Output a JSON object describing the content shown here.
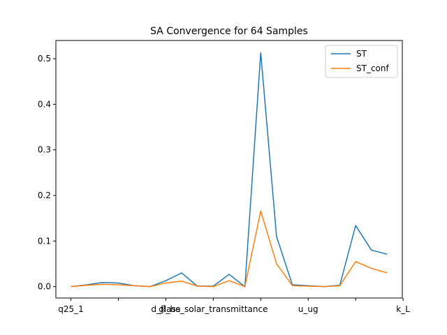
{
  "chart_data": {
    "type": "line",
    "title": "SA Convergence for 64 Samples",
    "xlabel": "",
    "ylabel": "",
    "xtick_labels": [
      "q25_1",
      "",
      "d_fl_be",
      "glass_solar_transmittance",
      "",
      "u_ug",
      "",
      "k_L"
    ],
    "x": [
      0,
      1,
      2,
      3,
      4,
      5,
      6,
      7,
      8,
      9,
      10,
      11,
      12,
      13,
      14,
      15,
      16,
      17,
      18,
      19,
      20
    ],
    "ylim": [
      -0.025,
      0.54
    ],
    "yticks": [
      0.0,
      0.1,
      0.2,
      0.3,
      0.4,
      0.5
    ],
    "ytick_labels": [
      "0.0",
      "0.1",
      "0.2",
      "0.3",
      "0.4",
      "0.5"
    ],
    "legend_position": "top-right",
    "grid": false,
    "series": [
      {
        "name": "ST",
        "color": "#1f77b4",
        "values": [
          0.0,
          0.004,
          0.009,
          0.008,
          0.002,
          0.0,
          0.013,
          0.03,
          0.001,
          0.001,
          0.027,
          0.0,
          0.513,
          0.11,
          0.004,
          0.002,
          0.0,
          0.003,
          0.134,
          0.08,
          0.071
        ]
      },
      {
        "name": "ST_conf",
        "color": "#ff7f0e",
        "values": [
          0.0,
          0.003,
          0.005,
          0.004,
          0.002,
          0.0,
          0.008,
          0.012,
          0.001,
          0.0,
          0.013,
          0.0,
          0.166,
          0.05,
          0.002,
          0.001,
          0.0,
          0.002,
          0.055,
          0.04,
          0.03
        ]
      }
    ]
  }
}
